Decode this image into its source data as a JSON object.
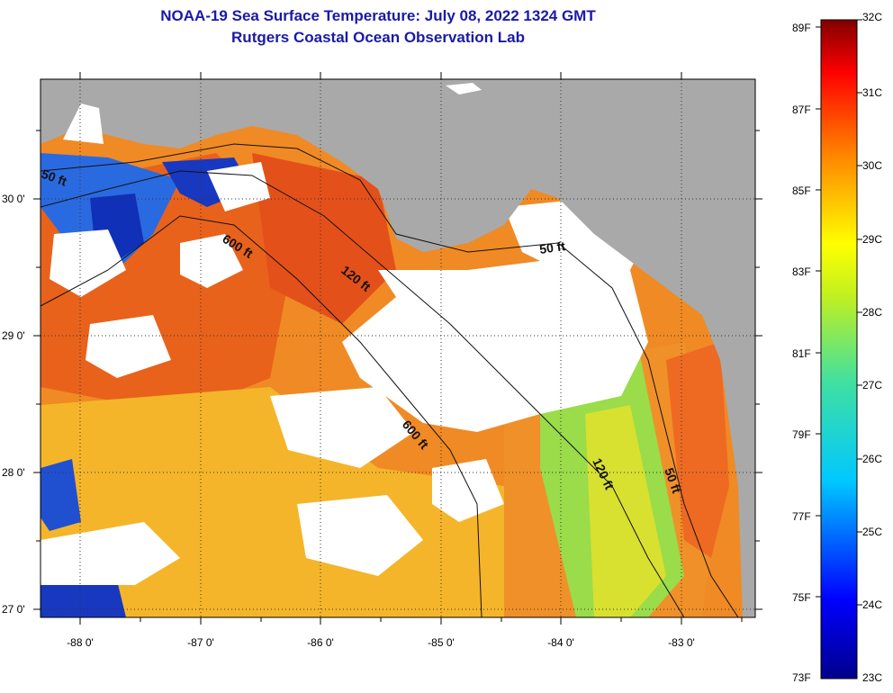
{
  "title": {
    "line1": "NOAA-19 Sea Surface Temperature:  July 08, 2022 1324 GMT",
    "line2": "Rutgers Coastal Ocean Observation Lab"
  },
  "map": {
    "lat_labels": [
      "30 0'",
      "29 0'",
      "28 0'",
      "27 0'"
    ],
    "lon_labels": [
      "-88 0'",
      "-87 0'",
      "-86 0'",
      "-85 0'",
      "-84 0'",
      "-83 0'"
    ],
    "contour_labels": [
      "50 ft",
      "600 ft",
      "120 ft",
      "50 ft",
      "600 ft",
      "120 ft",
      "50 ft"
    ],
    "colors": {
      "land": "#a9a9a9",
      "cloud": "#ffffff",
      "warm": "#f07820",
      "hot": "#e8501a",
      "mid": "#f5c020",
      "cool": "#60d060",
      "cold": "#1a40d0",
      "coldest": "#0a0a90"
    }
  },
  "colorbar": {
    "fahrenheit": [
      "89F",
      "87F",
      "85F",
      "83F",
      "81F",
      "79F",
      "77F",
      "75F",
      "73F"
    ],
    "celsius": [
      "32C",
      "31C",
      "30C",
      "29C",
      "28C",
      "27C",
      "26C",
      "25C",
      "24C",
      "23C"
    ]
  }
}
